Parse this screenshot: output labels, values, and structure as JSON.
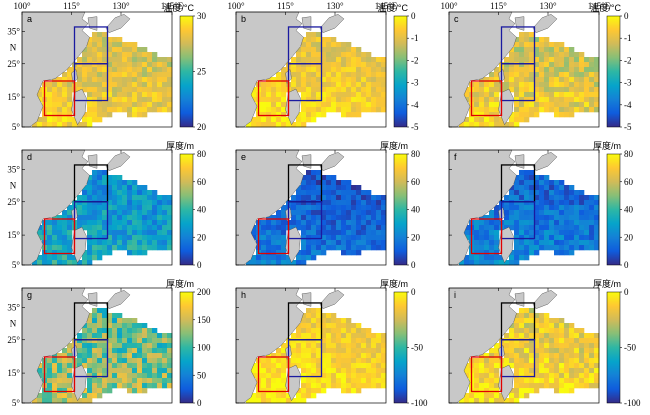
{
  "top_lon_ticks": [
    "100°",
    "115°",
    "130°",
    "145°E"
  ],
  "lat_ticks": [
    "35°",
    "25°",
    "15°",
    "5°"
  ],
  "lat_N": "N",
  "colorbar_titles": {
    "temp": "温度/°C",
    "thick": "厚度/m"
  },
  "panels": [
    {
      "id": "a",
      "label": "a",
      "title_key": "temp",
      "ticks": [
        "30",
        "25",
        "20"
      ],
      "palette": "parula",
      "mean": 0.8,
      "spread": 0.12,
      "show_lon": true,
      "show_lat": true
    },
    {
      "id": "b",
      "label": "b",
      "title_key": "temp",
      "ticks": [
        "0",
        "-1",
        "-2",
        "-3",
        "-4",
        "-5"
      ],
      "palette": "parula",
      "mean": 0.85,
      "spread": 0.1,
      "show_lon": true,
      "show_lat": false
    },
    {
      "id": "c",
      "label": "c",
      "title_key": "temp",
      "ticks": [
        "0",
        "-1",
        "-2",
        "-3",
        "-4",
        "-5"
      ],
      "palette": "parula",
      "mean": 0.8,
      "spread": 0.14,
      "show_lon": true,
      "show_lat": false
    },
    {
      "id": "d",
      "label": "d",
      "title_key": "thick",
      "ticks": [
        "80",
        "60",
        "40",
        "20",
        "0"
      ],
      "palette": "parula",
      "mean": 0.35,
      "spread": 0.14,
      "show_lon": false,
      "show_lat": true
    },
    {
      "id": "e",
      "label": "e",
      "title_key": "thick",
      "ticks": [
        "80",
        "60",
        "40",
        "20",
        "0"
      ],
      "palette": "parula",
      "mean": 0.15,
      "spread": 0.1,
      "show_lon": false,
      "show_lat": false
    },
    {
      "id": "f",
      "label": "f",
      "title_key": "thick",
      "ticks": [
        "80",
        "60",
        "40",
        "20",
        "0"
      ],
      "palette": "parula",
      "mean": 0.2,
      "spread": 0.12,
      "show_lon": false,
      "show_lat": false
    },
    {
      "id": "g",
      "label": "g",
      "title_key": "thick",
      "ticks": [
        "200",
        "150",
        "100",
        "50",
        "0"
      ],
      "palette": "parula",
      "mean": 0.6,
      "spread": 0.2,
      "show_lon": false,
      "show_lat": true
    },
    {
      "id": "h",
      "label": "h",
      "title_key": "thick",
      "ticks": [
        "0",
        "-50",
        "-100"
      ],
      "palette": "parula",
      "mean": 0.88,
      "spread": 0.1,
      "show_lon": false,
      "show_lat": false
    },
    {
      "id": "i",
      "label": "i",
      "title_key": "thick",
      "ticks": [
        "0",
        "-50",
        "-100"
      ],
      "palette": "parula",
      "mean": 0.85,
      "spread": 0.14,
      "show_lon": false,
      "show_lat": false
    }
  ],
  "colors": {
    "land": "#c8c8c8",
    "box_blue": "#1a1aa0",
    "box_black": "#000000",
    "box_red": "#e00000",
    "parula": [
      "#352a87",
      "#0f5cdd",
      "#1481d6",
      "#06a4ca",
      "#2eb7a4",
      "#87bf77",
      "#d1bb59",
      "#fec832",
      "#f9fb0e"
    ]
  }
}
